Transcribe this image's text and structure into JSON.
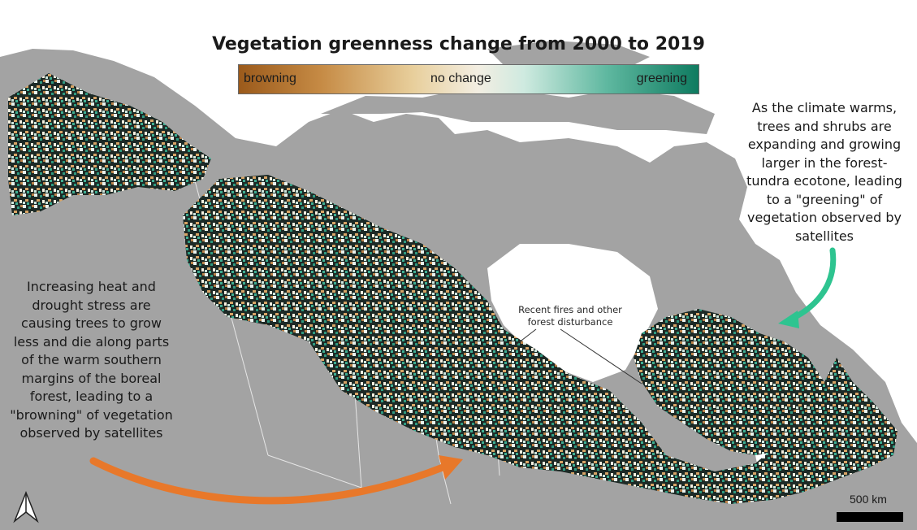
{
  "title": "Vegetation greenness change from 2000 to 2019",
  "legend": {
    "low_label": "browning",
    "mid_label": "no change",
    "high_label": "greening",
    "colors": {
      "browning": "#9b5a1b",
      "no_change": "#f3eee2",
      "greening": "#0f7b60"
    }
  },
  "annotations": {
    "left": "Increasing heat and drought stress are causing trees to grow less and die along parts of the warm southern margins of the boreal forest, leading to a \"browning\" of vegetation observed by satellites",
    "right": "As the climate warms, trees and shrubs are expanding and growing larger in the forest-tundra ecotone, leading to a \"greening\" of vegetation observed by satellites",
    "middle": "Recent fires and other forest disturbance"
  },
  "scale": {
    "label": "500 km"
  },
  "icons": {
    "north_arrow": "north-arrow-icon",
    "left_arrow": "orange-curved-arrow-icon",
    "right_arrow": "green-curved-arrow-icon"
  },
  "colors": {
    "land": "#a3a3a3",
    "water": "#ffffff",
    "orange_arrow": "#e8782a",
    "green_arrow": "#2ec490"
  }
}
